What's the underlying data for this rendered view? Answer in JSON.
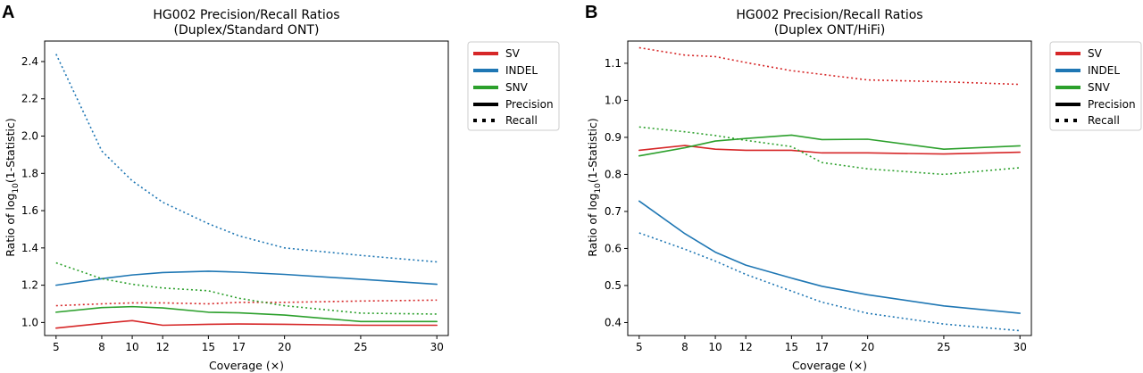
{
  "panel_letters": [
    "A",
    "B"
  ],
  "legend_style_entries": [
    {
      "label": "Precision",
      "dash": "solid"
    },
    {
      "label": "Recall",
      "dash": "dotted"
    }
  ],
  "chart_data": [
    {
      "type": "line",
      "panel": "A",
      "title": "HG002 Precision/Recall Ratios",
      "subtitle": "(Duplex/Standard ONT)",
      "xlabel": "Coverage (×)",
      "ylabel": "Ratio of log10(1-Statistic)",
      "x": [
        5,
        8,
        10,
        12,
        15,
        17,
        20,
        25,
        30
      ],
      "x_ticks": [
        5,
        8,
        10,
        12,
        15,
        17,
        20,
        25,
        30
      ],
      "y_ticks": [
        1.0,
        1.2,
        1.4,
        1.6,
        1.8,
        2.0,
        2.2,
        2.4
      ],
      "xlim": [
        4.25,
        30.75
      ],
      "ylim": [
        0.93,
        2.51
      ],
      "legend_placement": "outside-right",
      "series": [
        {
          "name": "SV",
          "metric": "Precision",
          "color": "#d62728",
          "values": [
            0.97,
            0.995,
            1.01,
            0.985,
            0.99,
            0.992,
            0.99,
            0.985,
            0.985
          ]
        },
        {
          "name": "SV",
          "metric": "Recall",
          "color": "#d62728",
          "values": [
            1.09,
            1.1,
            1.105,
            1.105,
            1.1,
            1.108,
            1.108,
            1.115,
            1.12
          ]
        },
        {
          "name": "INDEL",
          "metric": "Precision",
          "color": "#1f77b4",
          "values": [
            1.2,
            1.235,
            1.255,
            1.268,
            1.275,
            1.27,
            1.258,
            1.232,
            1.205
          ]
        },
        {
          "name": "INDEL",
          "metric": "Recall",
          "color": "#1f77b4",
          "values": [
            2.44,
            1.92,
            1.76,
            1.645,
            1.53,
            1.465,
            1.4,
            1.36,
            1.325
          ]
        },
        {
          "name": "SNV",
          "metric": "Precision",
          "color": "#2ca02c",
          "values": [
            1.055,
            1.08,
            1.085,
            1.078,
            1.055,
            1.052,
            1.04,
            1.005,
            1.005
          ]
        },
        {
          "name": "SNV",
          "metric": "Recall",
          "color": "#2ca02c",
          "values": [
            1.32,
            1.235,
            1.205,
            1.185,
            1.17,
            1.13,
            1.09,
            1.05,
            1.045
          ]
        }
      ]
    },
    {
      "type": "line",
      "panel": "B",
      "title": "HG002 Precision/Recall Ratios",
      "subtitle": "(Duplex ONT/HiFi)",
      "xlabel": "Coverage (×)",
      "ylabel": "Ratio of log10(1-Statistic)",
      "x": [
        5,
        8,
        10,
        12,
        15,
        17,
        20,
        25,
        30
      ],
      "x_ticks": [
        5,
        8,
        10,
        12,
        15,
        17,
        20,
        25,
        30
      ],
      "y_ticks": [
        0.4,
        0.5,
        0.6,
        0.7,
        0.8,
        0.9,
        1.0,
        1.1
      ],
      "xlim": [
        4.25,
        30.75
      ],
      "ylim": [
        0.365,
        1.16
      ],
      "legend_placement": "outside-right",
      "series": [
        {
          "name": "SV",
          "metric": "Precision",
          "color": "#d62728",
          "values": [
            0.865,
            0.878,
            0.868,
            0.865,
            0.865,
            0.858,
            0.858,
            0.855,
            0.86
          ]
        },
        {
          "name": "SV",
          "metric": "Recall",
          "color": "#d62728",
          "values": [
            1.142,
            1.122,
            1.118,
            1.102,
            1.08,
            1.07,
            1.055,
            1.05,
            1.043
          ]
        },
        {
          "name": "INDEL",
          "metric": "Precision",
          "color": "#1f77b4",
          "values": [
            0.728,
            0.64,
            0.59,
            0.555,
            0.52,
            0.498,
            0.475,
            0.445,
            0.425
          ]
        },
        {
          "name": "INDEL",
          "metric": "Recall",
          "color": "#1f77b4",
          "values": [
            0.642,
            0.598,
            0.566,
            0.53,
            0.485,
            0.455,
            0.425,
            0.396,
            0.378
          ]
        },
        {
          "name": "SNV",
          "metric": "Precision",
          "color": "#2ca02c",
          "values": [
            0.85,
            0.872,
            0.89,
            0.897,
            0.906,
            0.894,
            0.895,
            0.868,
            0.877
          ]
        },
        {
          "name": "SNV",
          "metric": "Recall",
          "color": "#2ca02c",
          "values": [
            0.928,
            0.915,
            0.905,
            0.892,
            0.875,
            0.832,
            0.815,
            0.8,
            0.818
          ]
        }
      ]
    }
  ]
}
